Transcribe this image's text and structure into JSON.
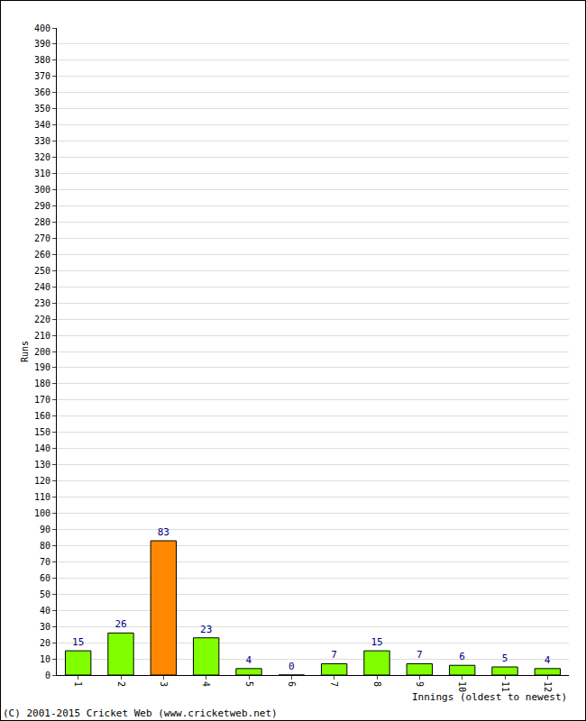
{
  "chart_data": {
    "type": "bar",
    "y_label": "Runs",
    "x_label": "Innings (oldest to newest)",
    "annotations": [
      "(C) 2001-2015 Cricket Web (www.cricketweb.net)"
    ],
    "categories": [
      "1",
      "2",
      "3",
      "4",
      "5",
      "6",
      "7",
      "8",
      "9",
      "10",
      "11",
      "12"
    ],
    "values": [
      15,
      26,
      83,
      23,
      4,
      0,
      7,
      15,
      7,
      6,
      5,
      4
    ],
    "colors": [
      "#80ff00",
      "#80ff00",
      "#ff8800",
      "#80ff00",
      "#80ff00",
      "#80ff00",
      "#80ff00",
      "#80ff00",
      "#80ff00",
      "#80ff00",
      "#80ff00",
      "#80ff00"
    ],
    "ylim": [
      0,
      400
    ],
    "yticks": [
      0,
      10,
      20,
      30,
      40,
      50,
      60,
      70,
      80,
      90,
      100,
      110,
      120,
      130,
      140,
      150,
      160,
      170,
      180,
      190,
      200,
      210,
      220,
      230,
      240,
      250,
      260,
      270,
      280,
      290,
      300,
      310,
      320,
      330,
      340,
      350,
      360,
      370,
      380,
      390,
      400
    ],
    "grid": true,
    "data_labels": true
  }
}
